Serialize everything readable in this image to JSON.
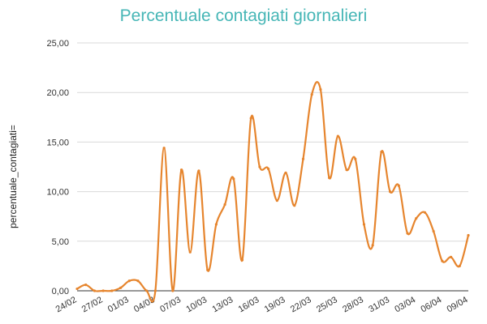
{
  "chart_data": {
    "type": "line",
    "title": "Percentuale contagiati giornalieri",
    "ylabel": "percentuale_contagiati=",
    "xlabel": "",
    "ylim": [
      0,
      25
    ],
    "yticks": [
      "0,00",
      "5,00",
      "10,00",
      "15,00",
      "20,00",
      "25,00"
    ],
    "ytick_values": [
      0,
      5,
      10,
      15,
      20,
      25
    ],
    "x_tick_labels": [
      "24/02",
      "27/02",
      "01/03",
      "04/03",
      "07/03",
      "10/03",
      "13/03",
      "16/03",
      "19/03",
      "22/03",
      "25/03",
      "28/03",
      "31/03",
      "03/04",
      "06/04",
      "09/04"
    ],
    "grid": true,
    "legend": "none",
    "series_color": "#e6852e",
    "grid_color": "#d9d9d9",
    "x": [
      "24/02",
      "25/02",
      "26/02",
      "27/02",
      "28/02",
      "29/02",
      "01/03",
      "02/03",
      "03/03",
      "04/03",
      "05/03",
      "06/03",
      "07/03",
      "08/03",
      "09/03",
      "10/03",
      "11/03",
      "12/03",
      "13/03",
      "14/03",
      "15/03",
      "16/03",
      "17/03",
      "18/03",
      "19/03",
      "20/03",
      "21/03",
      "22/03",
      "23/03",
      "24/03",
      "25/03",
      "26/03",
      "27/03",
      "28/03",
      "29/03",
      "30/03",
      "31/03",
      "01/04",
      "02/04",
      "03/04",
      "04/04",
      "05/04",
      "06/04",
      "07/04",
      "08/04",
      "09/04"
    ],
    "series": [
      {
        "values": [
          0.2,
          0.6,
          0.0,
          0.0,
          0.0,
          0.3,
          1.0,
          1.0,
          0.0,
          0.0,
          14.4,
          0.0,
          12.2,
          3.9,
          12.1,
          2.1,
          6.7,
          8.7,
          11.3,
          3.1,
          17.4,
          12.5,
          12.3,
          9.1,
          11.9,
          8.6,
          13.3,
          19.8,
          20.3,
          11.4,
          15.6,
          12.2,
          13.3,
          6.7,
          4.6,
          14.0,
          10.0,
          10.6,
          5.8,
          7.3,
          7.9,
          6.0,
          3.0,
          3.4,
          2.5,
          5.6
        ]
      }
    ]
  }
}
